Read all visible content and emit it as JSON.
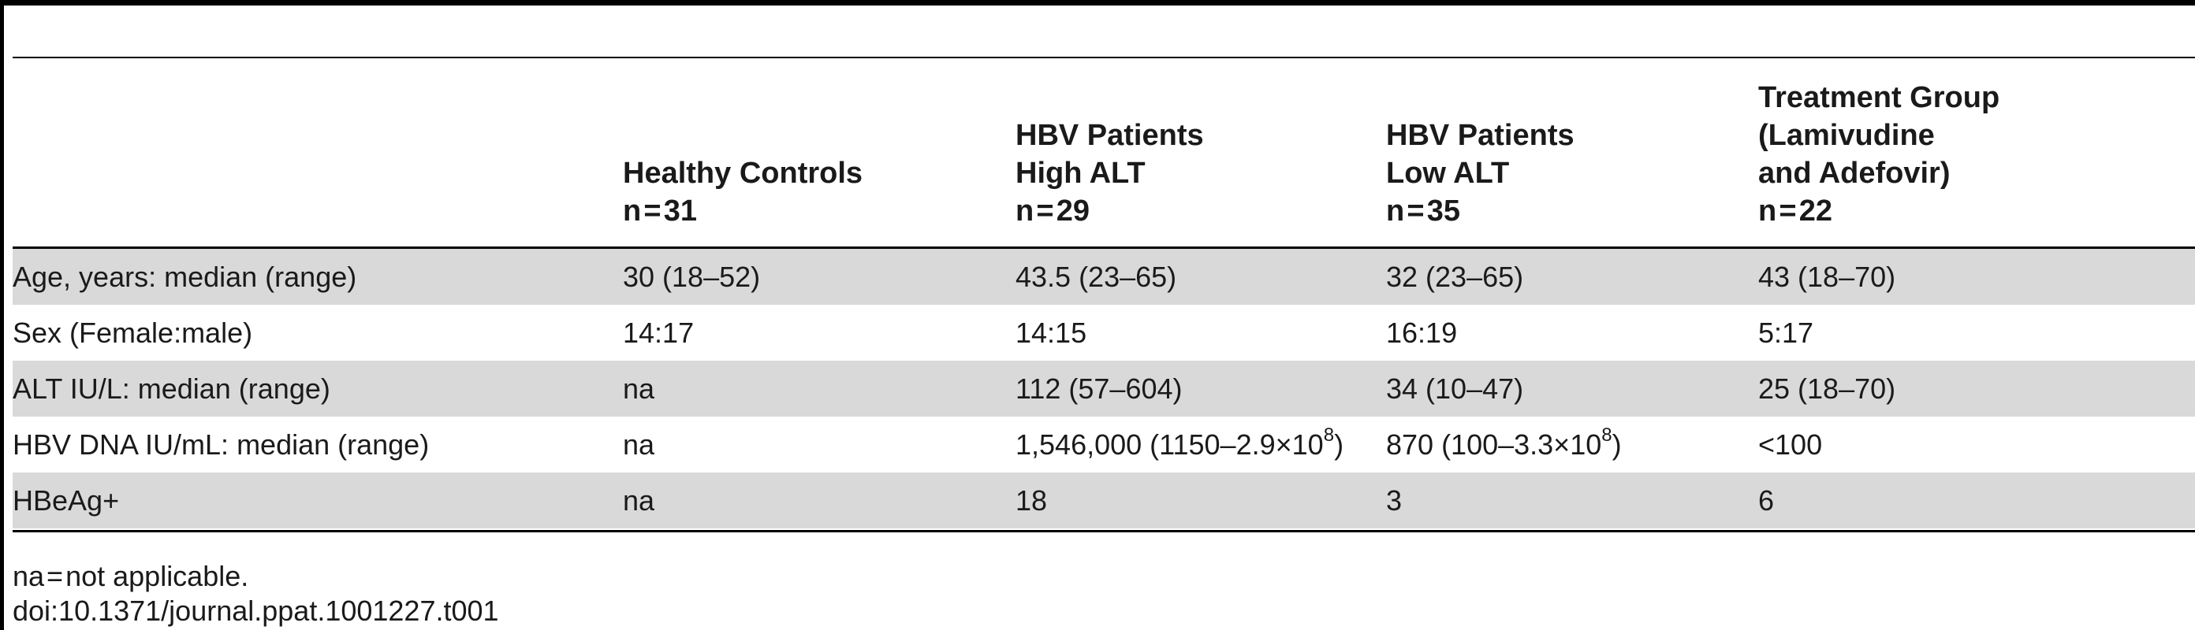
{
  "table": {
    "headers": [
      {
        "lines": [
          "Healthy Controls",
          "n = 31"
        ]
      },
      {
        "lines": [
          "HBV Patients",
          "High ALT",
          "n = 29"
        ]
      },
      {
        "lines": [
          "HBV Patients",
          "Low ALT",
          "n = 35"
        ]
      },
      {
        "lines": [
          "Treatment Group",
          "(Lamivudine",
          "and Adefovir)",
          "n = 22"
        ]
      }
    ],
    "rows": [
      {
        "label": "Age, years: median (range)",
        "values": [
          "30 (18–52)",
          "43.5 (23–65)",
          "32 (23–65)",
          "43 (18–70)"
        ]
      },
      {
        "label": "Sex (Female:male)",
        "values": [
          "14:17",
          "14:15",
          "16:19",
          "5:17"
        ]
      },
      {
        "label": "ALT IU/L: median (range)",
        "values": [
          "na",
          "112 (57–604)",
          "34 (10–47)",
          "25 (18–70)"
        ]
      },
      {
        "label": "HBV DNA IU/mL: median (range)",
        "values": [
          "na",
          "",
          "",
          "<100"
        ],
        "dna_high": {
          "pre": "1,546,000 (1150–2.9×10",
          "exp": "8",
          "post": ")"
        },
        "dna_low": {
          "pre": "870 (100–3.3×10",
          "exp": "8",
          "post": ")"
        }
      },
      {
        "label": "HBeAg+",
        "values": [
          "na",
          "18",
          "3",
          "6"
        ]
      }
    ]
  },
  "footnotes": {
    "abbrev": "na = not applicable.",
    "doi": "doi:10.1371/journal.ppat.1001227.t001"
  }
}
